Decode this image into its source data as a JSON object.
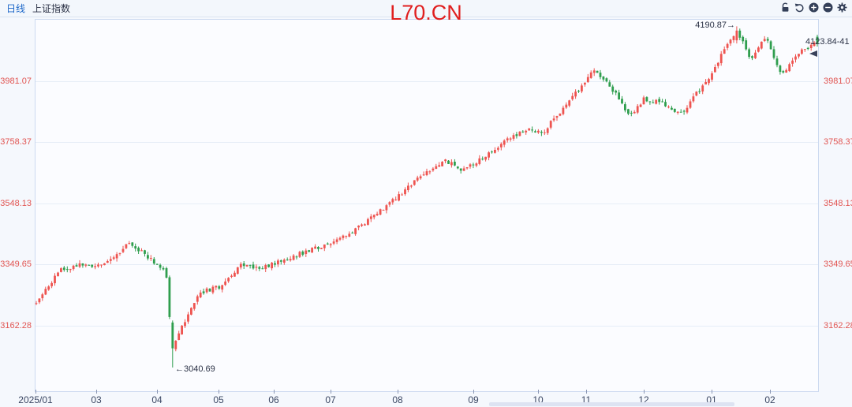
{
  "header": {
    "timeframe_label": "日线",
    "symbol_label": "上证指数"
  },
  "title": "L70.CN",
  "toolbar": {
    "icons": [
      "lock-icon",
      "undo-icon",
      "zoom-in-icon",
      "zoom-out-icon",
      "settings-icon"
    ],
    "icon_color": "#333f58"
  },
  "chart_data": {
    "type": "candlestick",
    "title": "L70.CN",
    "symbol": "上证指数",
    "timeframe": "日线 (daily)",
    "grid": true,
    "y_axis": {
      "scale": "log",
      "side": "both",
      "ticks": [
        "3981.07",
        "3758.37",
        "3548.13",
        "3349.65",
        "3162.28"
      ],
      "values": [
        3981.07,
        3758.37,
        3548.13,
        3349.65,
        3162.28
      ],
      "label_color": "#e15552"
    },
    "x_axis": {
      "ticks": [
        {
          "label": "2025/01",
          "f": 0.001
        },
        {
          "label": "03",
          "f": 0.078
        },
        {
          "label": "04",
          "f": 0.156
        },
        {
          "label": "05",
          "f": 0.234
        },
        {
          "label": "06",
          "f": 0.305
        },
        {
          "label": "07",
          "f": 0.377
        },
        {
          "label": "08",
          "f": 0.463
        },
        {
          "label": "09",
          "f": 0.559
        },
        {
          "label": "10",
          "f": 0.642
        },
        {
          "label": "11",
          "f": 0.703
        },
        {
          "label": "12",
          "f": 0.777
        },
        {
          "label": "01",
          "f": 0.863
        },
        {
          "label": "02",
          "f": 0.938
        }
      ]
    },
    "annotations": {
      "high_label": "4190.87→",
      "low_label": "←3040.69",
      "last_label": "4123.84-41"
    },
    "specials": {
      "high": {
        "f": 0.898,
        "price": 4190.87
      },
      "low": {
        "f": 0.175,
        "price": 3040.69
      },
      "last": {
        "price": 4123.84,
        "open": 4150,
        "high": 4158,
        "low": 4112
      }
    },
    "num_candles": 253,
    "seed": 11,
    "volatility": 0.0046,
    "colors": {
      "up": "#ee5450",
      "down": "#2f9e4e"
    },
    "anchors": [
      [
        0.0,
        3230
      ],
      [
        0.012,
        3272
      ],
      [
        0.03,
        3330
      ],
      [
        0.055,
        3352
      ],
      [
        0.075,
        3338
      ],
      [
        0.1,
        3372
      ],
      [
        0.118,
        3420
      ],
      [
        0.135,
        3392
      ],
      [
        0.155,
        3348
      ],
      [
        0.166,
        3332
      ],
      [
        0.171,
        3180
      ],
      [
        0.177,
        3105
      ],
      [
        0.188,
        3168
      ],
      [
        0.21,
        3262
      ],
      [
        0.236,
        3282
      ],
      [
        0.262,
        3348
      ],
      [
        0.286,
        3340
      ],
      [
        0.306,
        3352
      ],
      [
        0.33,
        3378
      ],
      [
        0.353,
        3398
      ],
      [
        0.376,
        3420
      ],
      [
        0.4,
        3442
      ],
      [
        0.43,
        3506
      ],
      [
        0.46,
        3564
      ],
      [
        0.48,
        3610
      ],
      [
        0.502,
        3660
      ],
      [
        0.524,
        3695
      ],
      [
        0.546,
        3658
      ],
      [
        0.572,
        3706
      ],
      [
        0.602,
        3766
      ],
      [
        0.626,
        3806
      ],
      [
        0.648,
        3788
      ],
      [
        0.664,
        3846
      ],
      [
        0.682,
        3902
      ],
      [
        0.704,
        3986
      ],
      [
        0.716,
        4022
      ],
      [
        0.736,
        3956
      ],
      [
        0.76,
        3854
      ],
      [
        0.778,
        3916
      ],
      [
        0.802,
        3896
      ],
      [
        0.824,
        3856
      ],
      [
        0.86,
        3988
      ],
      [
        0.884,
        4112
      ],
      [
        0.898,
        4172
      ],
      [
        0.914,
        4062
      ],
      [
        0.934,
        4146
      ],
      [
        0.954,
        4004
      ],
      [
        0.974,
        4082
      ],
      [
        1.0,
        4136
      ]
    ]
  }
}
